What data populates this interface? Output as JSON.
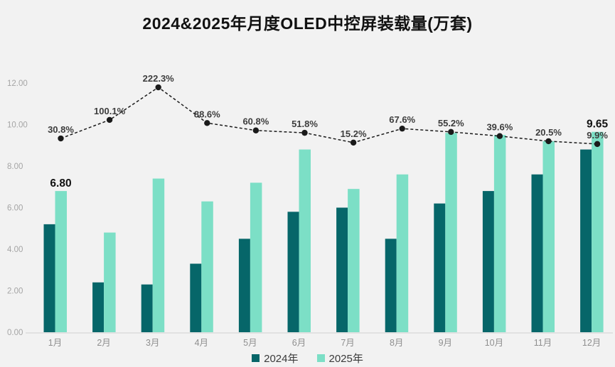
{
  "title": "2024&2025年月度OLED中控屏装载量(万套)",
  "legend": [
    {
      "label": "2024年",
      "color": "#066669"
    },
    {
      "label": "2025年",
      "color": "#7cdfc6"
    }
  ],
  "y_axis": {
    "tick_labels": [
      "0.00",
      "2.00",
      "4.00",
      "6.00",
      "8.00",
      "10.00",
      "12.00"
    ],
    "tick_values": [
      0,
      2,
      4,
      6,
      8,
      10,
      12
    ]
  },
  "colors": {
    "background": "#f2f2f2",
    "bar_2024": "#066669",
    "bar_2025": "#7cdfc6",
    "line": "#1a1a1a",
    "axis_text": "#a5a5a5",
    "x_tick_text": "#8f8f8f",
    "pct_label": "#3d3d3d",
    "value_label": "#111111",
    "baseline": "#e1e1e1"
  },
  "chart_data": {
    "type": "bar",
    "title": "2024&2025年月度OLED中控屏装载量(万套)",
    "categories": [
      "1月",
      "2月",
      "3月",
      "4月",
      "5月",
      "6月",
      "7月",
      "8月",
      "9月",
      "10月",
      "11月",
      "12月"
    ],
    "series": [
      {
        "name": "2024年",
        "type": "bar",
        "color": "#066669",
        "values": [
          5.2,
          2.4,
          2.3,
          3.3,
          4.5,
          5.8,
          6.0,
          4.5,
          6.2,
          6.8,
          7.6,
          8.8
        ]
      },
      {
        "name": "2025年",
        "type": "bar",
        "color": "#7cdfc6",
        "values": [
          6.8,
          4.8,
          7.4,
          6.3,
          7.2,
          8.8,
          6.9,
          7.6,
          9.6,
          9.5,
          9.2,
          9.65
        ],
        "value_labels": {
          "0": "6.80",
          "11": "9.65"
        }
      },
      {
        "name": "growth-rate-line",
        "type": "line",
        "color": "#1a1a1a",
        "style": "dashed",
        "values_pct": [
          30.8,
          100.1,
          222.3,
          88.6,
          60.8,
          51.8,
          15.2,
          67.6,
          55.2,
          39.6,
          20.5,
          9.9
        ],
        "point_labels": [
          "30.8%",
          "100.1%",
          "222.3%",
          "88.6%",
          "60.8%",
          "51.8%",
          "15.2%",
          "67.6%",
          "55.2%",
          "39.6%",
          "20.5%",
          "9.9%"
        ]
      }
    ],
    "ylabel": "",
    "xlabel": "",
    "ylim": [
      0,
      12
    ],
    "grid": false,
    "legend_position": "bottom"
  }
}
